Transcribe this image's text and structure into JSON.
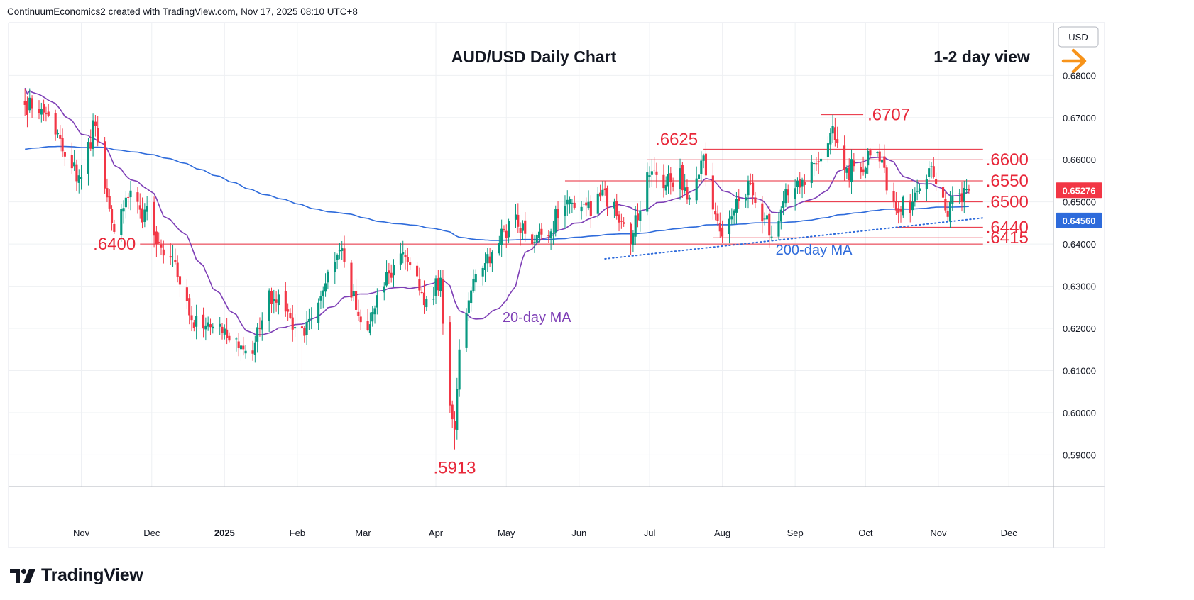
{
  "header": {
    "credit": "ContinuumEconomics2 created with TradingView.com, Nov 17, 2025 08:10 UTC+8"
  },
  "brand": {
    "name": "TradingView",
    "icon": "tradingview-logo-icon"
  },
  "colors": {
    "bull": "#089981",
    "bear": "#f23645",
    "ma20": "#7e3fb6",
    "ma200": "#2e6bdb",
    "level": "#e8283a",
    "grid": "#eef0f3",
    "arrow": "#f7931a"
  },
  "chart_data": {
    "type": "candlestick",
    "title": "AUD/USD Daily Chart",
    "view_label": "1-2 day view",
    "currency_label": "USD",
    "y_axis": {
      "ylim": [
        0.5825,
        0.6925
      ],
      "ticks": [
        "0.68000",
        "0.67000",
        "0.66000",
        "0.65000",
        "0.64000",
        "0.63000",
        "0.62000",
        "0.61000",
        "0.60000",
        "0.59000"
      ]
    },
    "x_axis": {
      "labels": [
        {
          "label": "Nov",
          "date": "2024-11-01"
        },
        {
          "label": "Dec",
          "date": "2024-12-01"
        },
        {
          "label": "2025",
          "date": "2025-01-01",
          "bold": true
        },
        {
          "label": "Feb",
          "date": "2025-02-01"
        },
        {
          "label": "Mar",
          "date": "2025-03-01"
        },
        {
          "label": "Apr",
          "date": "2025-04-01"
        },
        {
          "label": "May",
          "date": "2025-05-01"
        },
        {
          "label": "Jun",
          "date": "2025-06-01"
        },
        {
          "label": "Jul",
          "date": "2025-07-01"
        },
        {
          "label": "Aug",
          "date": "2025-08-01"
        },
        {
          "label": "Sep",
          "date": "2025-09-01"
        },
        {
          "label": "Oct",
          "date": "2025-10-01"
        },
        {
          "label": "Nov",
          "date": "2025-11-01"
        },
        {
          "label": "Dec",
          "date": "2025-12-01"
        }
      ]
    },
    "price_anchors": [
      {
        "date": "2024-10-08",
        "close": 0.673
      },
      {
        "date": "2024-10-14",
        "close": 0.671
      },
      {
        "date": "2024-10-21",
        "close": 0.666
      },
      {
        "date": "2024-10-28",
        "close": 0.658
      },
      {
        "date": "2024-11-01",
        "close": 0.656
      },
      {
        "date": "2024-11-07",
        "close": 0.668
      },
      {
        "date": "2024-11-14",
        "close": 0.645
      },
      {
        "date": "2024-11-20",
        "close": 0.651
      },
      {
        "date": "2024-11-25",
        "close": 0.65
      },
      {
        "date": "2024-12-02",
        "close": 0.642
      },
      {
        "date": "2024-12-10",
        "close": 0.637
      },
      {
        "date": "2024-12-18",
        "close": 0.622
      },
      {
        "date": "2024-12-31",
        "close": 0.619
      },
      {
        "date": "2025-01-13",
        "close": 0.614
      },
      {
        "date": "2025-01-20",
        "close": 0.629
      },
      {
        "date": "2025-01-27",
        "close": 0.624
      },
      {
        "date": "2025-02-03",
        "close": 0.62
      },
      {
        "date": "2025-02-12",
        "close": 0.629
      },
      {
        "date": "2025-02-20",
        "close": 0.639
      },
      {
        "date": "2025-02-27",
        "close": 0.623
      },
      {
        "date": "2025-03-04",
        "close": 0.621
      },
      {
        "date": "2025-03-10",
        "close": 0.63
      },
      {
        "date": "2025-03-18",
        "close": 0.638
      },
      {
        "date": "2025-03-25",
        "close": 0.629
      },
      {
        "date": "2025-03-31",
        "close": 0.627
      },
      {
        "date": "2025-04-03",
        "close": 0.632
      },
      {
        "date": "2025-04-06",
        "close": 0.604
      },
      {
        "date": "2025-04-09",
        "close": 0.596
      },
      {
        "date": "2025-04-11",
        "close": 0.615
      },
      {
        "date": "2025-04-16",
        "close": 0.629
      },
      {
        "date": "2025-04-25",
        "close": 0.638
      },
      {
        "date": "2025-05-05",
        "close": 0.647
      },
      {
        "date": "2025-05-12",
        "close": 0.64
      },
      {
        "date": "2025-05-20",
        "close": 0.643
      },
      {
        "date": "2025-05-26",
        "close": 0.649
      },
      {
        "date": "2025-06-05",
        "close": 0.65
      },
      {
        "date": "2025-06-16",
        "close": 0.65
      },
      {
        "date": "2025-06-23",
        "close": 0.64
      },
      {
        "date": "2025-06-30",
        "close": 0.657
      },
      {
        "date": "2025-07-08",
        "close": 0.654
      },
      {
        "date": "2025-07-14",
        "close": 0.658
      },
      {
        "date": "2025-07-18",
        "close": 0.651
      },
      {
        "date": "2025-07-24",
        "close": 0.661
      },
      {
        "date": "2025-07-31",
        "close": 0.643
      },
      {
        "date": "2025-08-06",
        "close": 0.648
      },
      {
        "date": "2025-08-12",
        "close": 0.655
      },
      {
        "date": "2025-08-21",
        "close": 0.642
      },
      {
        "date": "2025-08-28",
        "close": 0.653
      },
      {
        "date": "2025-09-05",
        "close": 0.654
      },
      {
        "date": "2025-09-10",
        "close": 0.659
      },
      {
        "date": "2025-09-17",
        "close": 0.668
      },
      {
        "date": "2025-09-23",
        "close": 0.658
      },
      {
        "date": "2025-09-29",
        "close": 0.657
      },
      {
        "date": "2025-10-03",
        "close": 0.661
      },
      {
        "date": "2025-10-08",
        "close": 0.66
      },
      {
        "date": "2025-10-14",
        "close": 0.648
      },
      {
        "date": "2025-10-21",
        "close": 0.65
      },
      {
        "date": "2025-10-28",
        "close": 0.658
      },
      {
        "date": "2025-11-04",
        "close": 0.648
      },
      {
        "date": "2025-11-10",
        "close": 0.652
      },
      {
        "date": "2025-11-14",
        "close": 0.6527
      }
    ],
    "extremes": [
      {
        "date": "2025-04-09",
        "low": 0.5913
      },
      {
        "date": "2025-09-17",
        "high": 0.6707
      },
      {
        "date": "2025-02-03",
        "low": 0.609
      },
      {
        "date": "2025-06-23",
        "low": 0.6375
      }
    ],
    "series": [
      {
        "name": "20-day MA",
        "color": "#7e3fb6",
        "period": 20
      },
      {
        "name": "200-day MA",
        "color": "#2e6bdb",
        "period": 200
      }
    ],
    "levels": [
      {
        "value": 0.6707,
        "label": ".6707",
        "from": "2025-09-12",
        "to": "2025-09-30"
      },
      {
        "value": 0.6625,
        "label": ".6625",
        "from": "2025-07-24",
        "to": "2025-11-20"
      },
      {
        "value": 0.66,
        "label": ".6600",
        "from": "2025-06-30",
        "to": "2025-11-20"
      },
      {
        "value": 0.655,
        "label": ".6550",
        "from": "2025-05-26",
        "to": "2025-11-20"
      },
      {
        "value": 0.65,
        "label": ".6500",
        "from": "2025-09-05",
        "to": "2025-11-20"
      },
      {
        "value": 0.644,
        "label": ".6440",
        "from": "2025-10-14",
        "to": "2025-11-20"
      },
      {
        "value": 0.6415,
        "label": ".6415",
        "from": "2025-07-28",
        "to": "2025-11-20"
      },
      {
        "value": 0.64,
        "label": ".6400",
        "from": "2024-11-26",
        "to": "2025-11-20"
      },
      {
        "value": 0.5913,
        "label": ".5913",
        "label_only": true,
        "date": "2025-04-09"
      }
    ],
    "trendline": {
      "from_date": "2025-06-12",
      "from_value": 0.6365,
      "to_date": "2025-11-20",
      "to_value": 0.6462
    },
    "annotations": [
      {
        "text": "20-day MA",
        "color": "#7e3fb6",
        "date": "2025-05-14",
        "value": 0.6215
      },
      {
        "text": "200-day MA",
        "color": "#2e6bdb",
        "date": "2025-09-09",
        "value": 0.6375
      }
    ],
    "price_labels": [
      {
        "value": 0.65276,
        "text": "0.65276",
        "color": "#f23645"
      },
      {
        "value": 0.6456,
        "text": "0.64560",
        "color": "#2e6bdb"
      }
    ],
    "legend": "none",
    "grid": true
  }
}
